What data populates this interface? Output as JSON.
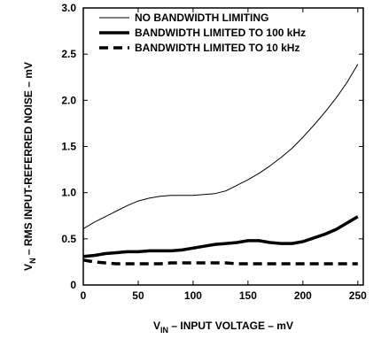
{
  "chart_data": {
    "type": "line",
    "xlabel": {
      "main": "V",
      "sub": "IN",
      "rest": " – INPUT VOLTAGE – mV"
    },
    "ylabel": {
      "main": "V",
      "sub": "N",
      "rest": " – RMS INPUT-REFERRED NOISE – mV"
    },
    "xlim": [
      0,
      255
    ],
    "ylim": [
      0,
      3.0
    ],
    "xticks": [
      0,
      50,
      100,
      150,
      200,
      250
    ],
    "yticks": [
      0,
      0.5,
      1.0,
      1.5,
      2.0,
      2.5,
      3.0
    ],
    "ytick_labels": [
      "0",
      "0.5",
      "1.0",
      "1.5",
      "2.0",
      "2.5",
      "3.0"
    ],
    "grid": false,
    "legend_position": "top-right",
    "series": [
      {
        "name": "NO BANDWIDTH LIMITING",
        "style": "thin-solid",
        "color": "#000000",
        "points": [
          [
            0,
            0.61
          ],
          [
            10,
            0.68
          ],
          [
            20,
            0.74
          ],
          [
            30,
            0.8
          ],
          [
            40,
            0.86
          ],
          [
            50,
            0.91
          ],
          [
            60,
            0.94
          ],
          [
            70,
            0.96
          ],
          [
            80,
            0.97
          ],
          [
            90,
            0.97
          ],
          [
            100,
            0.97
          ],
          [
            110,
            0.98
          ],
          [
            120,
            0.99
          ],
          [
            130,
            1.02
          ],
          [
            140,
            1.08
          ],
          [
            150,
            1.14
          ],
          [
            160,
            1.21
          ],
          [
            170,
            1.29
          ],
          [
            180,
            1.38
          ],
          [
            190,
            1.48
          ],
          [
            200,
            1.6
          ],
          [
            210,
            1.73
          ],
          [
            220,
            1.87
          ],
          [
            230,
            2.02
          ],
          [
            240,
            2.19
          ],
          [
            250,
            2.39
          ]
        ]
      },
      {
        "name": "BANDWIDTH LIMITED TO 100 kHz",
        "style": "thick-solid",
        "color": "#000000",
        "points": [
          [
            0,
            0.31
          ],
          [
            10,
            0.32
          ],
          [
            20,
            0.34
          ],
          [
            30,
            0.35
          ],
          [
            40,
            0.36
          ],
          [
            50,
            0.36
          ],
          [
            60,
            0.37
          ],
          [
            70,
            0.37
          ],
          [
            80,
            0.37
          ],
          [
            90,
            0.38
          ],
          [
            100,
            0.4
          ],
          [
            110,
            0.42
          ],
          [
            120,
            0.44
          ],
          [
            130,
            0.45
          ],
          [
            140,
            0.46
          ],
          [
            150,
            0.48
          ],
          [
            160,
            0.48
          ],
          [
            170,
            0.46
          ],
          [
            180,
            0.45
          ],
          [
            190,
            0.45
          ],
          [
            200,
            0.47
          ],
          [
            210,
            0.51
          ],
          [
            220,
            0.55
          ],
          [
            230,
            0.6
          ],
          [
            240,
            0.67
          ],
          [
            250,
            0.74
          ]
        ]
      },
      {
        "name": "BANDWIDTH LIMITED TO 10 kHz",
        "style": "thick-dashed",
        "color": "#000000",
        "points": [
          [
            0,
            0.27
          ],
          [
            10,
            0.25
          ],
          [
            20,
            0.24
          ],
          [
            30,
            0.23
          ],
          [
            40,
            0.23
          ],
          [
            50,
            0.23
          ],
          [
            60,
            0.23
          ],
          [
            70,
            0.23
          ],
          [
            80,
            0.24
          ],
          [
            90,
            0.24
          ],
          [
            100,
            0.24
          ],
          [
            110,
            0.24
          ],
          [
            120,
            0.24
          ],
          [
            130,
            0.24
          ],
          [
            140,
            0.23
          ],
          [
            150,
            0.23
          ],
          [
            160,
            0.23
          ],
          [
            170,
            0.23
          ],
          [
            180,
            0.23
          ],
          [
            190,
            0.23
          ],
          [
            200,
            0.23
          ],
          [
            210,
            0.23
          ],
          [
            220,
            0.23
          ],
          [
            230,
            0.23
          ],
          [
            240,
            0.23
          ],
          [
            250,
            0.23
          ]
        ]
      }
    ]
  }
}
